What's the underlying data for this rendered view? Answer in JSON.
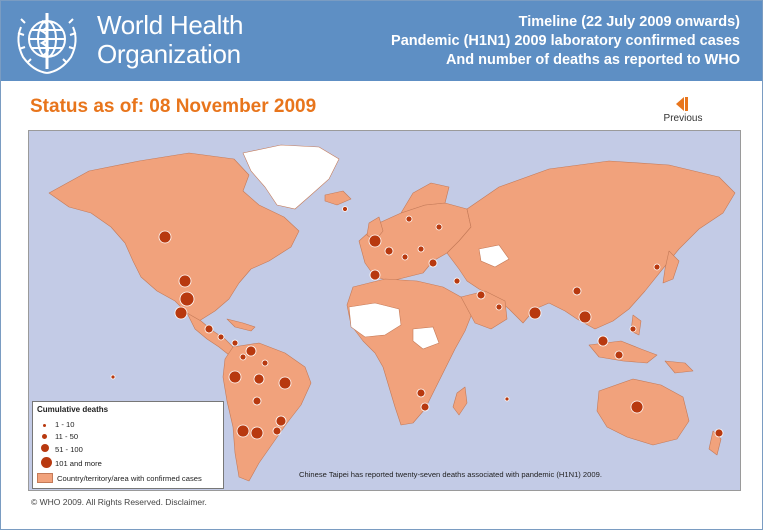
{
  "header": {
    "org_name_line1": "World Health",
    "org_name_line2": "Organization",
    "title_line1": "Timeline (22 July 2009 onwards)",
    "title_line2": "Pandemic (H1N1) 2009 laboratory confirmed cases",
    "title_line3": "And number of deaths as reported to WHO"
  },
  "status": {
    "text": "Status as of: 08 November 2009"
  },
  "nav": {
    "previous_label": "Previous",
    "icon": "previous-arrow-icon"
  },
  "legend": {
    "title": "Cumulative deaths",
    "items": [
      {
        "label": "1 - 10"
      },
      {
        "label": "11 - 50"
      },
      {
        "label": "51 - 100"
      },
      {
        "label": "101 and more"
      }
    ],
    "area_label": "Country/territory/area with confirmed cases"
  },
  "map_note": "Chinese Taipei has reported twenty-seven deaths associated with pandemic (H1N1) 2009.",
  "footer": {
    "text": "© WHO 2009. All Rights Reserved. Disclaimer."
  },
  "colors": {
    "header_bg": "#5e8fc4",
    "status_orange": "#e8751c",
    "ocean": "#c3cbe6",
    "confirmed_land": "#f1a27c",
    "no_data_land": "#ffffff",
    "death_marker": "#b8390f"
  }
}
